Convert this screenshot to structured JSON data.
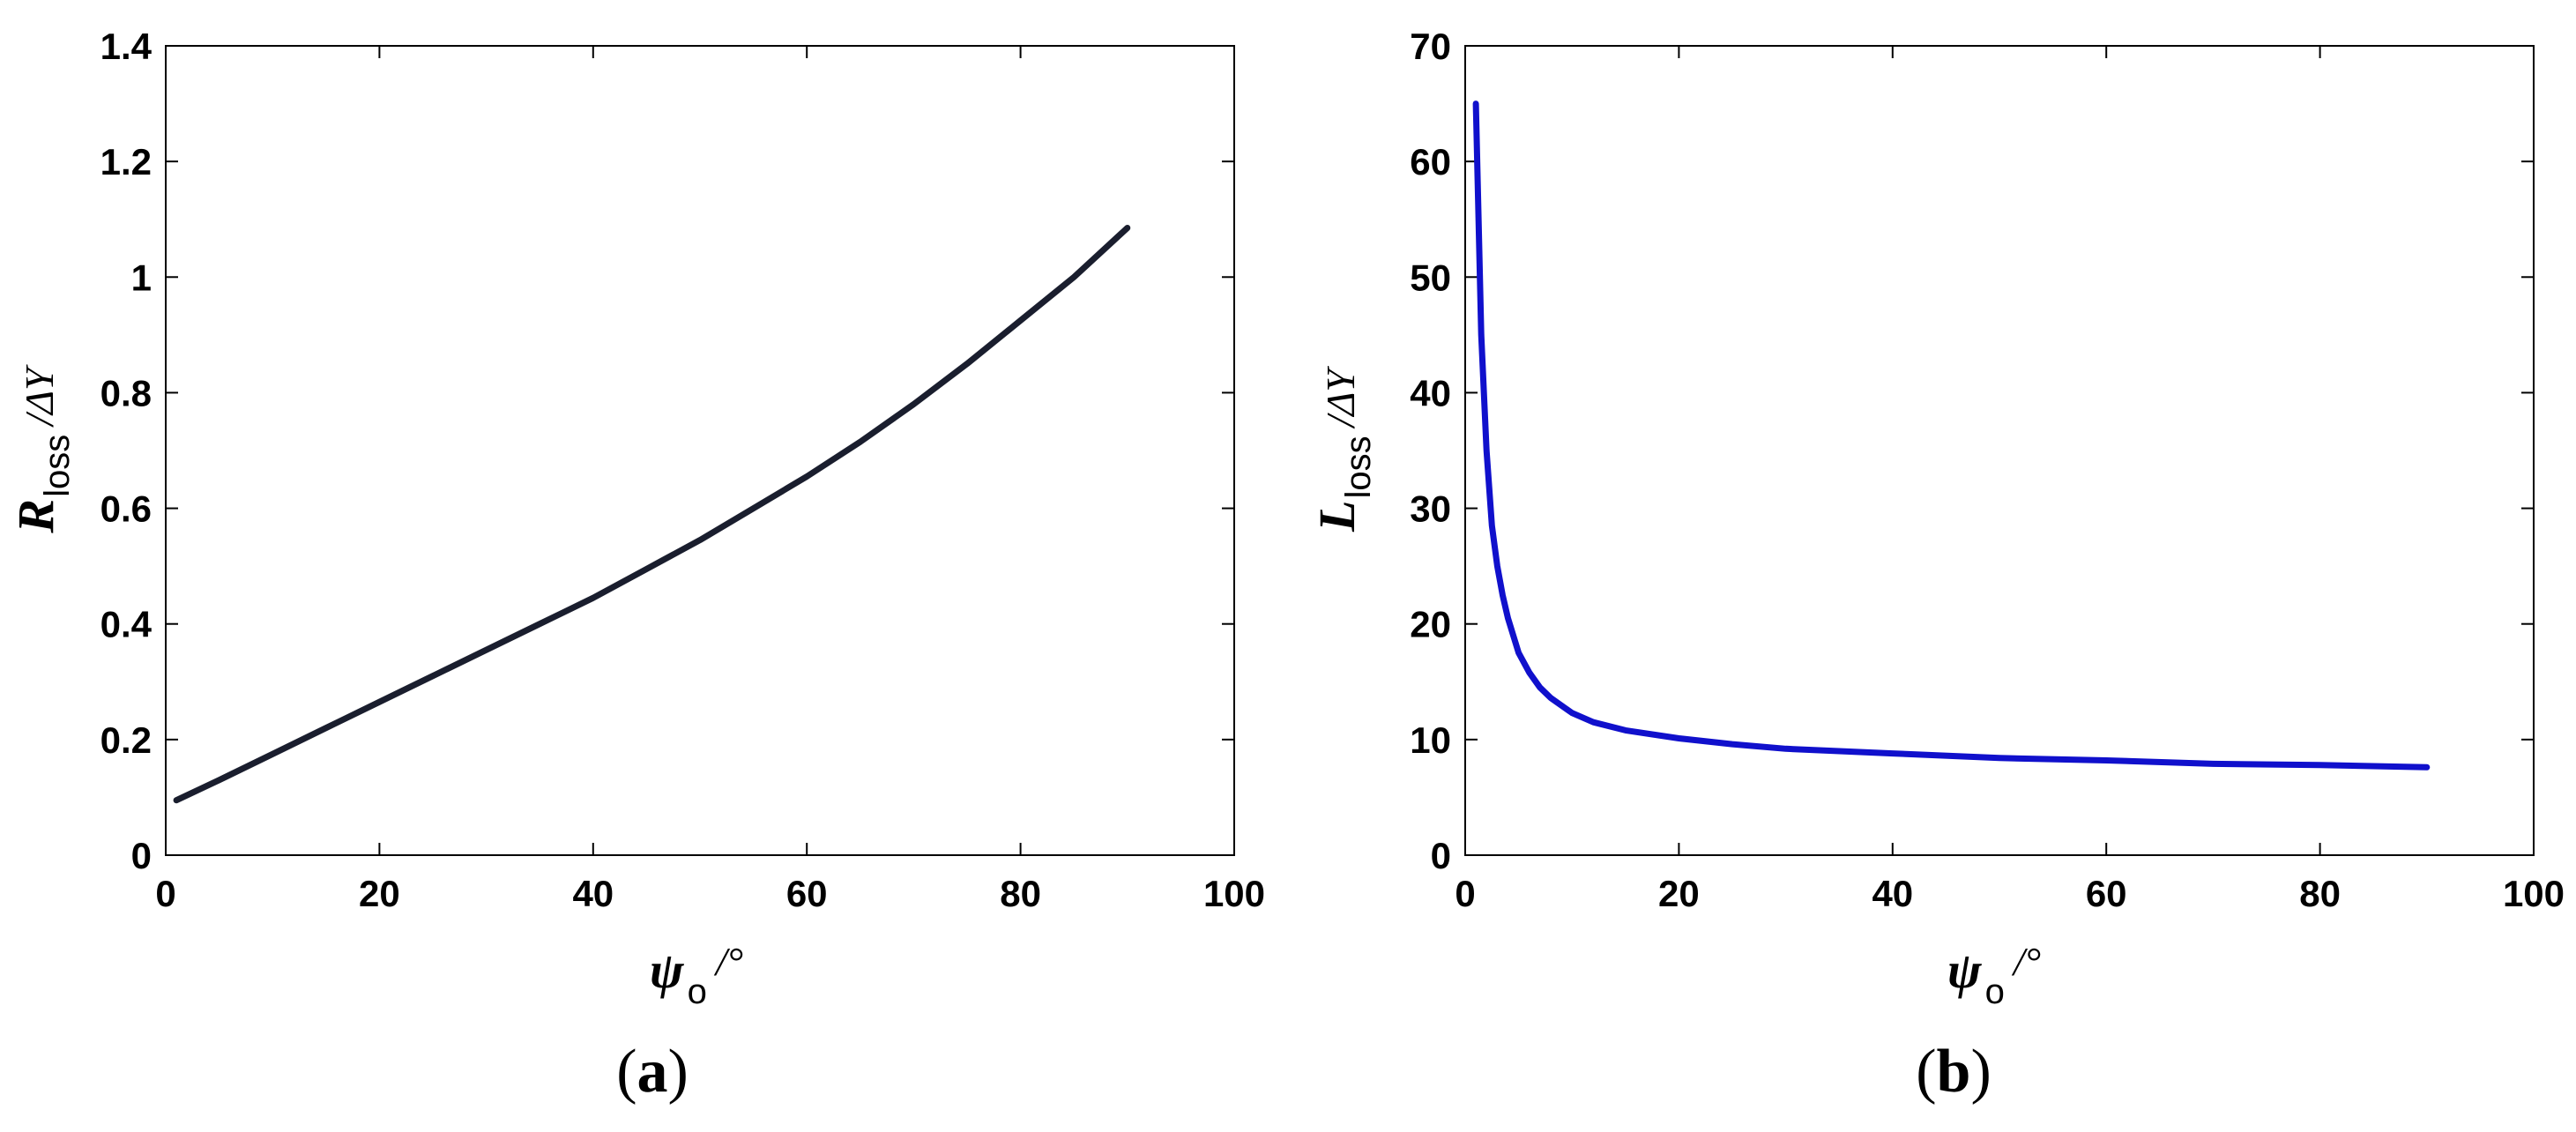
{
  "chart_data": [
    {
      "type": "line",
      "panel_label": "(a)",
      "panel_label_parts": [
        "(",
        "a",
        ")"
      ],
      "xlabel": {
        "symbol": "ψ",
        "subscript": "o",
        "unit": "/°"
      },
      "ylabel": {
        "symbol": "R",
        "subscript": "loss",
        "unit": "/ΔY"
      },
      "xlim": [
        0,
        100
      ],
      "ylim": [
        0,
        1.4
      ],
      "xticks": [
        0,
        20,
        40,
        60,
        80,
        100
      ],
      "xtick_labels": [
        "0",
        "20",
        "40",
        "60",
        "80",
        "100"
      ],
      "yticks": [
        0,
        0.2,
        0.4,
        0.6,
        0.8,
        1.0,
        1.2,
        1.4
      ],
      "ytick_labels": [
        "0",
        "0.2",
        "0.4",
        "0.6",
        "0.8",
        "1",
        "1.2",
        "1.4"
      ],
      "grid": false,
      "series": [
        {
          "color": "#1a1e2e",
          "x": [
            1,
            5,
            10,
            15,
            20,
            25,
            30,
            35,
            40,
            45,
            50,
            55,
            60,
            65,
            70,
            75,
            80,
            85,
            90
          ],
          "y": [
            0.095,
            0.13,
            0.175,
            0.22,
            0.265,
            0.31,
            0.355,
            0.4,
            0.445,
            0.495,
            0.545,
            0.6,
            0.655,
            0.715,
            0.78,
            0.85,
            0.925,
            1.0,
            1.085
          ]
        }
      ]
    },
    {
      "type": "line",
      "panel_label": "(b)",
      "panel_label_parts": [
        "(",
        "b",
        ")"
      ],
      "xlabel": {
        "symbol": "ψ",
        "subscript": "o",
        "unit": "/°"
      },
      "ylabel": {
        "symbol": "L",
        "subscript": "loss",
        "unit": "/ΔY"
      },
      "xlim": [
        0,
        100
      ],
      "ylim": [
        0,
        70
      ],
      "xticks": [
        0,
        20,
        40,
        60,
        80,
        100
      ],
      "xtick_labels": [
        "0",
        "20",
        "40",
        "60",
        "80",
        "100"
      ],
      "yticks": [
        0,
        10,
        20,
        30,
        40,
        50,
        60,
        70
      ],
      "ytick_labels": [
        "0",
        "10",
        "20",
        "30",
        "40",
        "50",
        "60",
        "70"
      ],
      "grid": false,
      "series": [
        {
          "color": "#1010cc",
          "x": [
            1,
            1.5,
            2,
            2.5,
            3,
            3.5,
            4,
            5,
            6,
            7,
            8,
            10,
            12,
            15,
            20,
            25,
            30,
            40,
            50,
            60,
            70,
            80,
            90
          ],
          "y": [
            65,
            45,
            35,
            28.5,
            25,
            22.5,
            20.5,
            17.5,
            15.8,
            14.5,
            13.6,
            12.3,
            11.5,
            10.8,
            10.1,
            9.6,
            9.2,
            8.8,
            8.4,
            8.2,
            7.9,
            7.8,
            7.6
          ]
        }
      ]
    }
  ]
}
